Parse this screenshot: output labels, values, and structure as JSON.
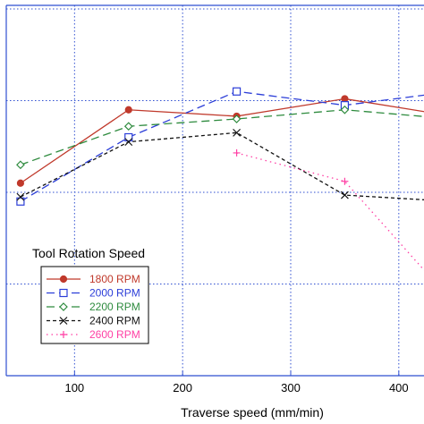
{
  "chart_data": {
    "type": "line",
    "xlabel": "Traverse speed (mm/min)",
    "ylabel": "",
    "xlim": [
      0,
      430
    ],
    "ylim": [
      0,
      4
    ],
    "x_ticks": [
      100,
      200,
      300,
      400
    ],
    "x_tick_labels": [
      "100",
      "200",
      "300",
      "400"
    ],
    "y_ticks": [
      1,
      2,
      3,
      4
    ],
    "grid": true,
    "legend_title": "Tool Rotation Speed",
    "legend_position": "lower-left",
    "series": [
      {
        "name": "1800 RPM",
        "color": "#c0392b",
        "dash": "solid",
        "marker": "filled-circle",
        "x": [
          50,
          150,
          250,
          350,
          450
        ],
        "y": [
          2.1,
          2.9,
          2.83,
          3.02,
          2.83
        ]
      },
      {
        "name": "2000 RPM",
        "color": "#2c3ed8",
        "dash": "longdash",
        "marker": "square",
        "x": [
          50,
          150,
          250,
          350,
          450
        ],
        "y": [
          1.9,
          2.6,
          3.1,
          2.95,
          3.1
        ]
      },
      {
        "name": "2200 RPM",
        "color": "#2e8b3e",
        "dash": "longdash",
        "marker": "diamond",
        "x": [
          50,
          150,
          250,
          350,
          450
        ],
        "y": [
          2.3,
          2.72,
          2.8,
          2.9,
          2.8
        ]
      },
      {
        "name": "2400 RPM",
        "color": "#111111",
        "dash": "shortdash",
        "marker": "x",
        "x": [
          50,
          150,
          250,
          350,
          450
        ],
        "y": [
          1.95,
          2.55,
          2.65,
          1.97,
          1.9
        ]
      },
      {
        "name": "2600 RPM",
        "color": "#ff3fa4",
        "dash": "dotted",
        "marker": "plus",
        "x": [
          250,
          350,
          450
        ],
        "y": [
          2.43,
          2.12,
          0.8
        ]
      }
    ]
  }
}
